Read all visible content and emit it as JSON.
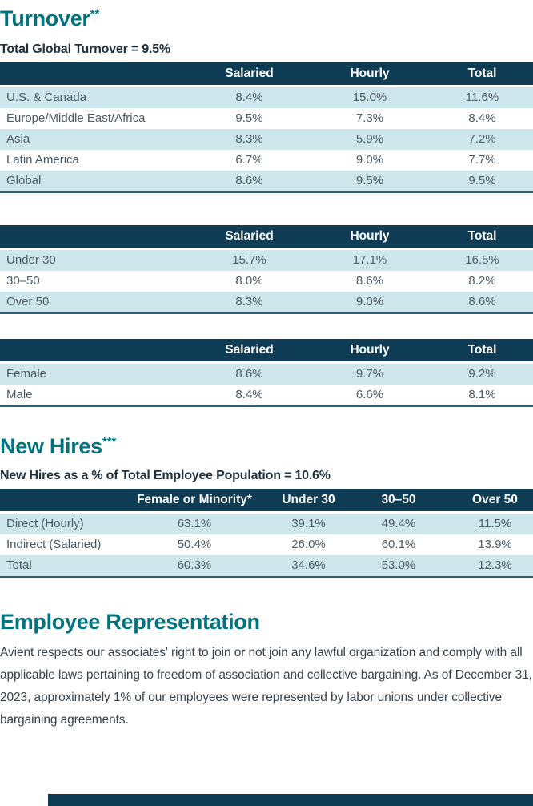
{
  "colors": {
    "teal": "#00737F",
    "navy": "#0E3D55",
    "lightrow": "#CEE7EC",
    "celltext": "#4C5A64",
    "subtitletext": "#1F313C",
    "bodytext": "#39434C",
    "tableborder": "#2F5E76"
  },
  "turnover": {
    "title": "Turnover",
    "title_marker": "**",
    "subtitle": "Total Global Turnover = 9.5%",
    "region_table": {
      "columns": [
        "Salaried",
        "Hourly",
        "Total"
      ],
      "rows": [
        {
          "label": "U.S. & Canada",
          "values": [
            "8.4%",
            "15.0%",
            "11.6%"
          ]
        },
        {
          "label": "Europe/Middle East/Africa",
          "values": [
            "9.5%",
            "7.3%",
            "8.4%"
          ]
        },
        {
          "label": "Asia",
          "values": [
            "8.3%",
            "5.9%",
            "7.2%"
          ]
        },
        {
          "label": "Latin America",
          "values": [
            "6.7%",
            "9.0%",
            "7.7%"
          ]
        },
        {
          "label": "Global",
          "values": [
            "8.6%",
            "9.5%",
            "9.5%"
          ]
        }
      ]
    },
    "age_table": {
      "columns": [
        "Salaried",
        "Hourly",
        "Total"
      ],
      "rows": [
        {
          "label": "Under 30",
          "values": [
            "15.7%",
            "17.1%",
            "16.5%"
          ]
        },
        {
          "label": "30–50",
          "values": [
            "8.0%",
            "8.6%",
            "8.2%"
          ]
        },
        {
          "label": "Over 50",
          "values": [
            "8.3%",
            "9.0%",
            "8.6%"
          ]
        }
      ]
    },
    "gender_table": {
      "columns": [
        "Salaried",
        "Hourly",
        "Total"
      ],
      "rows": [
        {
          "label": "Female",
          "values": [
            "8.6%",
            "9.7%",
            "9.2%"
          ]
        },
        {
          "label": "Male",
          "values": [
            "8.4%",
            "6.6%",
            "8.1%"
          ]
        }
      ]
    }
  },
  "new_hires": {
    "title": "New Hires",
    "title_marker": "***",
    "subtitle": "New Hires as a % of Total Employee Population = 10.6%",
    "table": {
      "columns": [
        "Female or Minority*",
        "Under 30",
        "30–50",
        "Over 50"
      ],
      "rows": [
        {
          "label": "Direct (Hourly)",
          "values": [
            "63.1%",
            "39.1%",
            "49.4%",
            "11.5%"
          ]
        },
        {
          "label": "Indirect (Salaried)",
          "values": [
            "50.4%",
            "26.0%",
            "60.1%",
            "13.9%"
          ]
        },
        {
          "label": "Total",
          "values": [
            "60.3%",
            "34.6%",
            "53.0%",
            "12.3%"
          ]
        }
      ]
    }
  },
  "employee_representation": {
    "title": "Employee Representation",
    "body": "Avient respects our associates' right to join or not join any lawful organization and comply with all applicable laws pertaining to freedom of association and collective bargaining. As of December 31, 2023, approximately 1% of our employees were represented by labor unions under collective bargaining agreements."
  }
}
